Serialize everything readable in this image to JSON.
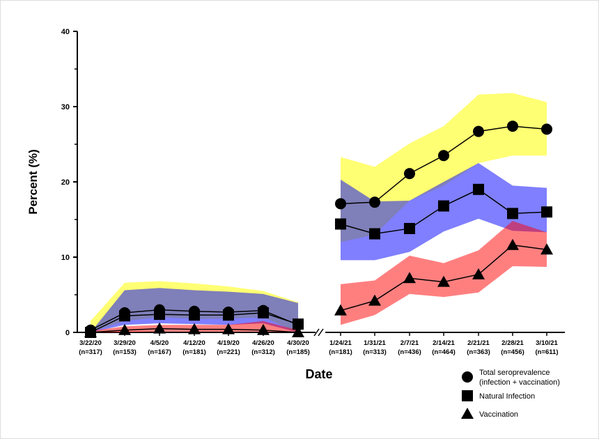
{
  "chart_data": {
    "type": "line",
    "xlabel": "Date",
    "ylabel": "Percent (%)",
    "ylim": [
      0,
      40
    ],
    "yticks": [
      "0",
      "10",
      "20",
      "30",
      "40"
    ],
    "panels": [
      {
        "categories": [
          "3/22/20",
          "3/29/20",
          "4/5/20",
          "4/12/20",
          "4/19/20",
          "4/26/20",
          "4/30/20"
        ],
        "n": [
          "(n=317)",
          "(n=153)",
          "(n=167)",
          "(n=181)",
          "(n=221)",
          "(n=312)",
          "(n=185)"
        ]
      },
      {
        "categories": [
          "1/24/21",
          "1/31/21",
          "2/7/21",
          "2/14/21",
          "2/21/21",
          "2/28/21",
          "3/10/21"
        ],
        "n": [
          "(n=181)",
          "(n=313)",
          "(n=436)",
          "(n=464)",
          "(n=363)",
          "(n=456)",
          "(n=611)"
        ]
      }
    ],
    "series": [
      {
        "name": "Total seroprevalence",
        "name2": "(infection + vaccination)",
        "marker": "circle",
        "band_color": "#ffff00",
        "values": [
          [
            0.3,
            2.6,
            3.0,
            2.8,
            2.7,
            2.9,
            1.0
          ],
          [
            17.1,
            17.3,
            21.1,
            23.5,
            26.7,
            27.4,
            27.0
          ]
        ],
        "ci_low": [
          [
            0,
            1.5,
            2,
            1.8,
            1.8,
            2,
            0
          ],
          [
            12.0,
            13.0,
            17.5,
            19.5,
            22.5,
            23.5,
            23.5
          ]
        ],
        "ci_high": [
          [
            1.5,
            6.6,
            6.8,
            6.5,
            6.1,
            5.5,
            4.0
          ],
          [
            23.3,
            22.0,
            25.1,
            27.4,
            31.6,
            31.8,
            30.6
          ]
        ]
      },
      {
        "name": "Natural Infection",
        "marker": "square",
        "band_color": "#0000ff",
        "values": [
          [
            0,
            2.2,
            2.4,
            2.3,
            2.3,
            2.6,
            1.1
          ],
          [
            14.4,
            13.1,
            13.8,
            16.8,
            19.0,
            15.8,
            16.0
          ]
        ],
        "ci_low": [
          [
            0,
            1,
            1.2,
            1.1,
            1,
            1.2,
            0
          ],
          [
            9.6,
            9.6,
            10.7,
            13.4,
            15.1,
            13.5,
            13.3
          ]
        ],
        "ci_high": [
          [
            0,
            5.6,
            5.9,
            5.6,
            5.4,
            5.1,
            3.9
          ],
          [
            20.3,
            17.4,
            17.5,
            20.0,
            22.5,
            19.5,
            19.2
          ]
        ]
      },
      {
        "name": "Vaccination",
        "marker": "triangle",
        "band_color": "#ff0000",
        "values": [
          [
            0,
            0.3,
            0.5,
            0.4,
            0.4,
            0.3,
            0
          ],
          [
            2.9,
            4.2,
            7.2,
            6.7,
            7.7,
            11.6,
            11.0
          ]
        ],
        "ci_low": [
          [
            0,
            0,
            0.1,
            0.1,
            0.1,
            0.1,
            0
          ],
          [
            1.0,
            2.3,
            5.1,
            4.7,
            5.3,
            8.8,
            8.7
          ]
        ],
        "ci_high": [
          [
            0.2,
            0.8,
            1.0,
            1.0,
            1.0,
            1.5,
            0.3
          ],
          [
            6.4,
            6.9,
            10.2,
            9.2,
            10.9,
            14.8,
            13.3
          ]
        ]
      }
    ]
  }
}
